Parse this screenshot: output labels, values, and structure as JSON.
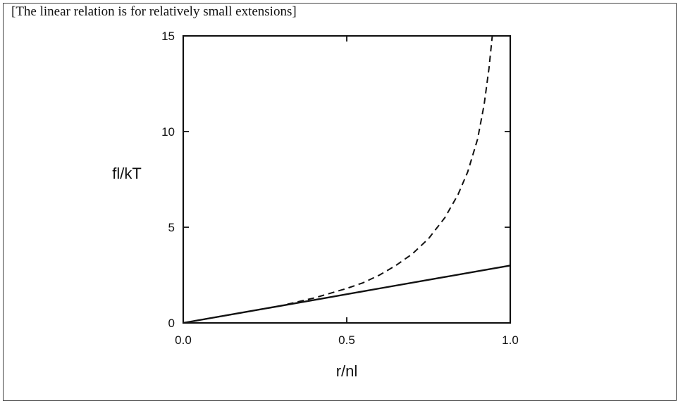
{
  "caption": "[The linear relation is for relatively small extensions]",
  "chart_data": {
    "type": "line",
    "title": "",
    "xlabel": "r/nl",
    "ylabel": "fl/kT",
    "xlim": [
      0.0,
      1.0
    ],
    "ylim": [
      0,
      15
    ],
    "x_ticks": [
      0.0,
      0.5,
      1.0
    ],
    "x_tick_labels": [
      "0.0",
      "0.5",
      "1.0"
    ],
    "y_ticks": [
      0,
      5,
      10,
      15
    ],
    "y_tick_labels": [
      "0",
      "5",
      "10",
      "15"
    ],
    "grid": false,
    "legend": "none",
    "series": [
      {
        "style": "solid",
        "color": "#111111",
        "x": [
          0.0,
          0.2,
          0.4,
          0.6,
          0.8,
          1.0
        ],
        "y": [
          0.0,
          0.6,
          1.2,
          1.8,
          2.4,
          3.0
        ]
      },
      {
        "style": "dashed",
        "color": "#111111",
        "x": [
          0.0,
          0.1,
          0.2,
          0.3,
          0.4,
          0.5,
          0.55,
          0.6,
          0.65,
          0.7,
          0.75,
          0.8,
          0.84,
          0.87,
          0.9,
          0.92,
          0.935,
          0.945
        ],
        "y": [
          0.0,
          0.3,
          0.6,
          0.9,
          1.3,
          1.8,
          2.1,
          2.5,
          3.0,
          3.6,
          4.4,
          5.5,
          6.7,
          7.9,
          9.6,
          11.4,
          13.3,
          15.0
        ]
      }
    ]
  }
}
